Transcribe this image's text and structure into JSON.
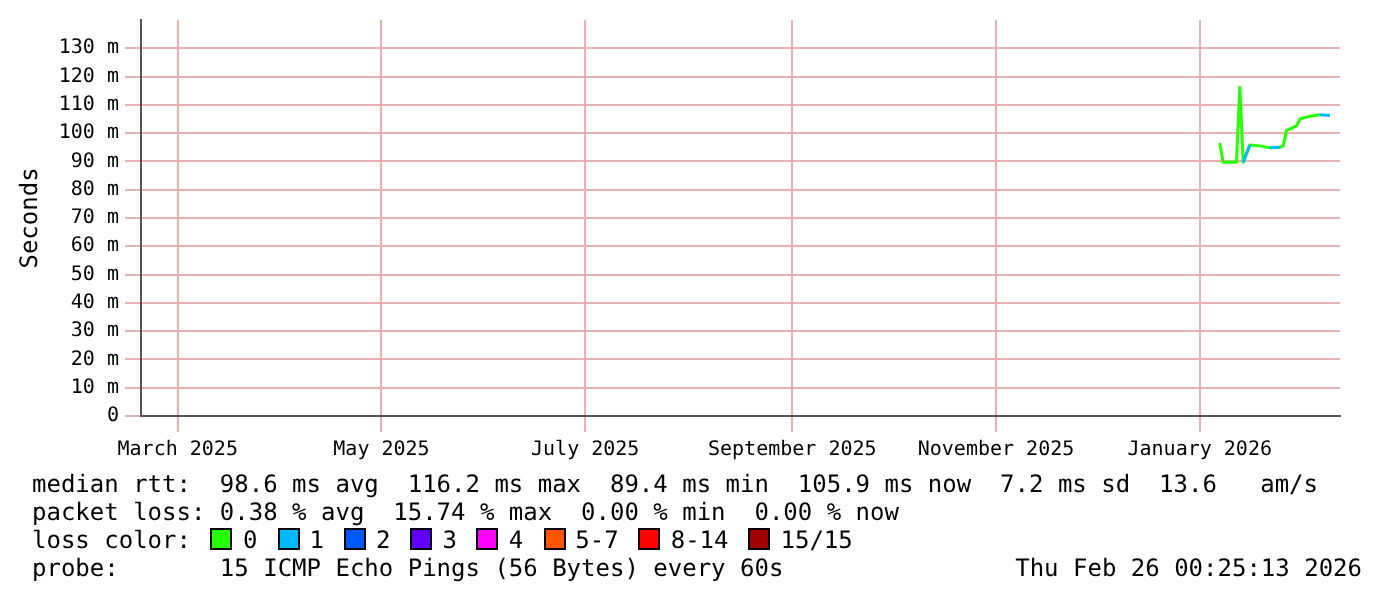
{
  "chart_data": {
    "type": "line",
    "ylabel": "Seconds",
    "x": [
      "2026-01-21",
      "2026-01-22",
      "2026-01-26",
      "2026-01-27",
      "2026-01-28",
      "2026-01-30",
      "2026-02-02",
      "2026-02-05",
      "2026-02-08",
      "2026-02-09",
      "2026-02-10",
      "2026-02-13",
      "2026-02-14",
      "2026-02-17",
      "2026-02-20",
      "2026-02-23"
    ],
    "series": [
      {
        "name": "0",
        "color": "#26ff00",
        "values": [
          96.5,
          89.7,
          89.7,
          116.2,
          89.7,
          95.8,
          95.5,
          94.8,
          95,
          95.5,
          101,
          102.6,
          105,
          106,
          106.5,
          null
        ]
      },
      {
        "name": "1",
        "color": "#00b8ff",
        "values": [
          null,
          null,
          null,
          null,
          89.7,
          95.8,
          null,
          94.8,
          95,
          null,
          null,
          null,
          null,
          null,
          106.5,
          106.2
        ]
      },
      {
        "name": "2",
        "color": "#0059ff",
        "values": [
          null,
          null,
          null,
          null,
          null,
          null,
          null,
          null,
          null,
          null,
          null,
          null,
          null,
          null,
          null,
          null
        ]
      },
      {
        "name": "3",
        "color": "#5e00ff",
        "values": [
          null,
          null,
          null,
          null,
          null,
          null,
          null,
          null,
          null,
          null,
          null,
          null,
          null,
          null,
          null,
          null
        ]
      },
      {
        "name": "4",
        "color": "#ff00ff",
        "values": [
          null,
          null,
          null,
          null,
          null,
          null,
          null,
          null,
          null,
          null,
          null,
          null,
          null,
          null,
          null,
          null
        ]
      },
      {
        "name": "5-7",
        "color": "#ff5500",
        "values": [
          null,
          null,
          null,
          null,
          null,
          null,
          null,
          null,
          null,
          null,
          null,
          null,
          null,
          null,
          null,
          null
        ]
      },
      {
        "name": "8-14",
        "color": "#ff0000",
        "values": [
          null,
          null,
          null,
          null,
          null,
          null,
          null,
          null,
          null,
          null,
          null,
          null,
          null,
          null,
          null,
          null
        ]
      },
      {
        "name": "15/15",
        "color": "#a10000",
        "values": [
          null,
          null,
          null,
          null,
          null,
          null,
          null,
          null,
          null,
          null,
          null,
          null,
          null,
          null,
          null,
          null
        ]
      }
    ],
    "legend": "bottom",
    "legend_title": "loss color:",
    "grid": true,
    "marker": "none",
    "line_style": "solid",
    "xlim": [
      "2025-03-04",
      "2026-02-26"
    ],
    "xticks": [
      {
        "value": "2025-03-15",
        "label": "March 2025"
      },
      {
        "value": "2025-05-15",
        "label": "May 2025"
      },
      {
        "value": "2025-07-15",
        "label": "July 2025"
      },
      {
        "value": "2025-09-15",
        "label": "September 2025"
      },
      {
        "value": "2025-11-15",
        "label": "November 2025"
      },
      {
        "value": "2026-01-15",
        "label": "January 2026"
      }
    ],
    "ylim": [
      0,
      140
    ],
    "yticks": [
      0,
      {
        "value": 10,
        "label": "10 m"
      },
      {
        "value": 20,
        "label": "20 m"
      },
      {
        "value": 30,
        "label": "30 m"
      },
      {
        "value": 40,
        "label": "40 m"
      },
      {
        "value": 50,
        "label": "50 m"
      },
      {
        "value": 60,
        "label": "60 m"
      },
      {
        "value": 70,
        "label": "70 m"
      },
      {
        "value": 80,
        "label": "80 m"
      },
      {
        "value": 90,
        "label": "90 m"
      },
      {
        "value": 100,
        "label": "100 m"
      },
      {
        "value": 110,
        "label": "110 m"
      },
      {
        "value": 120,
        "label": "120 m"
      },
      {
        "value": 130,
        "label": "130 m"
      }
    ],
    "annotations": [
      "median rtt:  98.6 ms avg  116.2 ms max  89.4 ms min  105.9 ms now  7.2 ms sd  13.6   am/s",
      "packet loss: 0.38 % avg  15.74 % max  0.00 % min  0.00 % now",
      "probe:       15 ICMP Echo Pings (56 Bytes) every 60s",
      "Thu Feb 26 00:25:13 2026"
    ]
  }
}
